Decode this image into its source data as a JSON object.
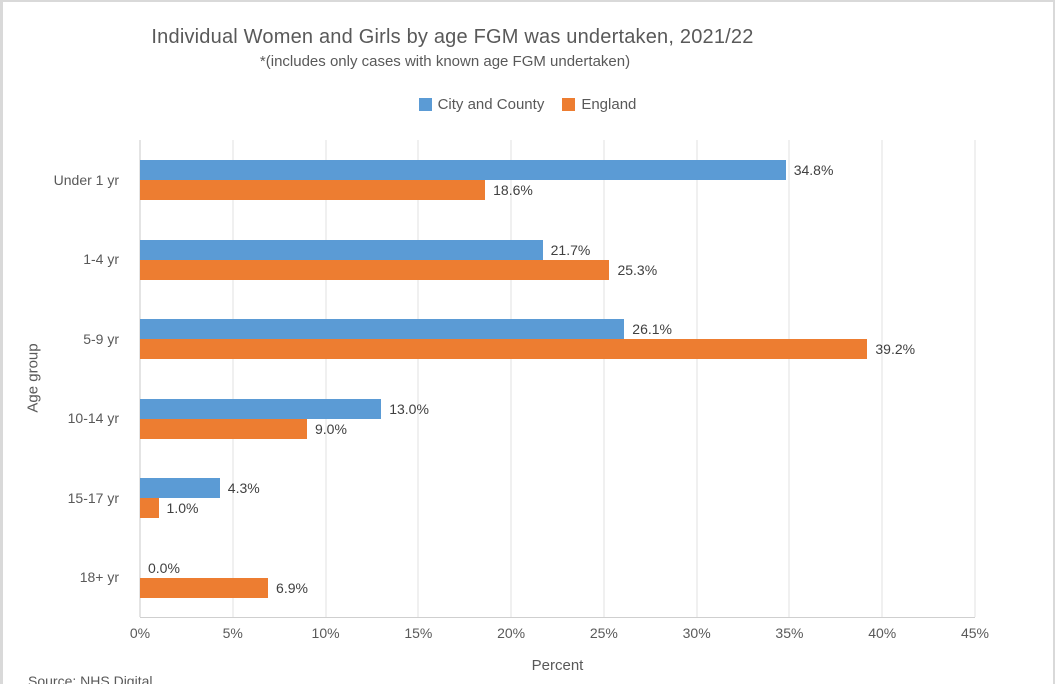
{
  "chart_data": {
    "type": "bar",
    "orientation": "horizontal",
    "title": "Individual Women and Girls by age FGM was undertaken, 2021/22",
    "subtitle": "*(includes only cases with known age FGM undertaken)",
    "categories": [
      "Under 1 yr",
      "1-4 yr",
      "5-9 yr",
      "10-14 yr",
      "15-17 yr",
      "18+ yr"
    ],
    "series": [
      {
        "name": "City and County",
        "color": "#5B9BD5",
        "values": [
          34.8,
          21.7,
          26.1,
          13.0,
          4.3,
          0.0
        ],
        "labels": [
          "34.8%",
          "21.7%",
          "26.1%",
          "13.0%",
          "4.3%",
          "0.0%"
        ]
      },
      {
        "name": "England",
        "color": "#ED7D31",
        "values": [
          18.6,
          25.3,
          39.2,
          9.0,
          1.0,
          6.9
        ],
        "labels": [
          "18.6%",
          "25.3%",
          "39.2%",
          "9.0%",
          "1.0%",
          "6.9%"
        ]
      }
    ],
    "xlabel": "Percent",
    "ylabel": "Age group",
    "xlim": [
      0,
      45
    ],
    "x_ticks": [
      "0%",
      "5%",
      "10%",
      "15%",
      "20%",
      "25%",
      "30%",
      "35%",
      "40%",
      "45%"
    ],
    "grid": true,
    "legend_position": "top",
    "data_labels": true
  },
  "footer": {
    "source": "Source: NHS Digital"
  }
}
